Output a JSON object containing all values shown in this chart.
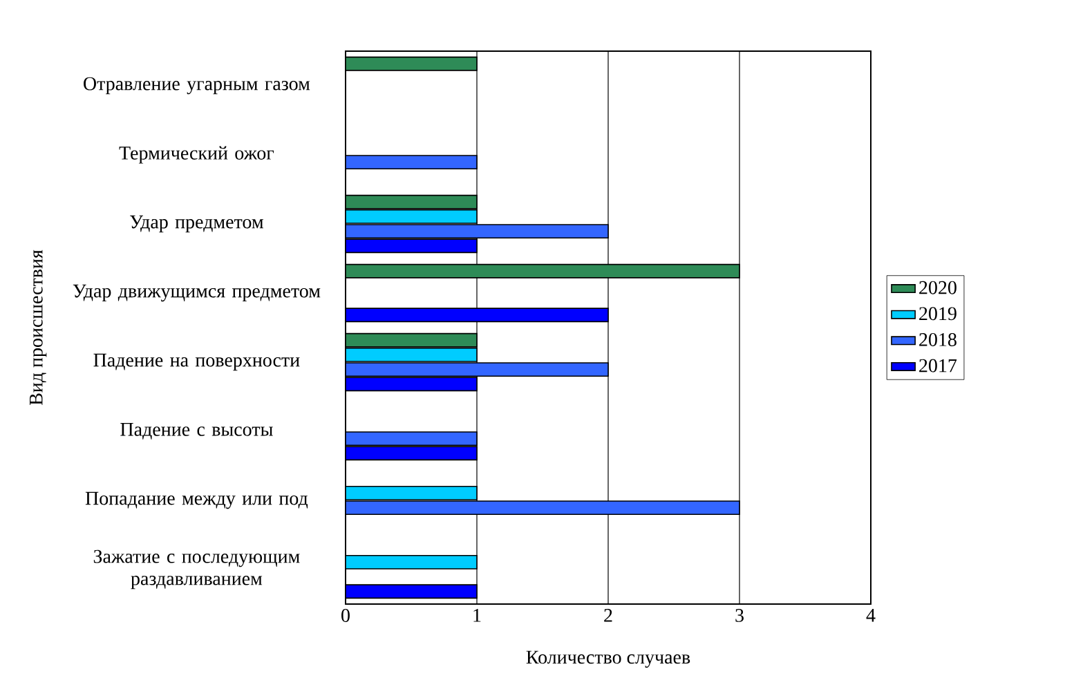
{
  "chart_data": {
    "type": "bar",
    "orientation": "horizontal",
    "xlabel": "Количество случаев",
    "ylabel": "Вид происшествия",
    "categories": [
      "Отравление угарным газом",
      "Термический ожог",
      "Удар предметом",
      "Удар движущимся предметом",
      "Падение на поверхности",
      "Падение с высоты",
      "Попадание между или под",
      "Зажатие с последующим раздавливанием"
    ],
    "series": [
      {
        "name": "2020",
        "color": "#2e8b57",
        "values": [
          1,
          null,
          1,
          3,
          1,
          null,
          null,
          null
        ]
      },
      {
        "name": "2019",
        "color": "#00ccff",
        "values": [
          null,
          null,
          1,
          null,
          1,
          null,
          1,
          1
        ]
      },
      {
        "name": "2018",
        "color": "#3366ff",
        "values": [
          null,
          1,
          2,
          null,
          2,
          1,
          3,
          null
        ]
      },
      {
        "name": "2017",
        "color": "#0000ff",
        "values": [
          null,
          null,
          1,
          2,
          1,
          1,
          null,
          1
        ]
      }
    ],
    "xlim": [
      0,
      4
    ],
    "xticks": [
      0,
      1,
      2,
      3,
      4
    ],
    "grid": "x",
    "legend": "right"
  }
}
